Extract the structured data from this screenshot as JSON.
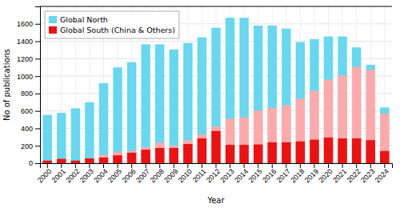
{
  "chart_data": {
    "type": "bar",
    "categories": [
      "2000",
      "2001",
      "2002",
      "2003",
      "2004",
      "2005",
      "2006",
      "2007",
      "2008",
      "2009",
      "2010",
      "2011",
      "2012",
      "2013",
      "2014",
      "2015",
      "2016",
      "2017",
      "2018",
      "2019",
      "2020",
      "2021",
      "2022",
      "2023",
      "2024"
    ],
    "series": [
      {
        "name": "Global North",
        "color": "#67d8ef",
        "values": [
          555,
          578,
          630,
          700,
          920,
          1100,
          1160,
          1365,
          1365,
          1305,
          1380,
          1445,
          1555,
          1670,
          1670,
          1580,
          1580,
          1545,
          1390,
          1425,
          1455,
          1455,
          1330,
          1130,
          640
        ]
      },
      {
        "color": "#ffaaaa",
        "values": [
          30,
          50,
          30,
          55,
          95,
          130,
          140,
          185,
          235,
          200,
          265,
          330,
          420,
          510,
          525,
          605,
          635,
          665,
          740,
          830,
          960,
          1005,
          1105,
          1070,
          570
        ]
      },
      {
        "name": "Global South (China & Others)",
        "color": "#ee1111",
        "values": [
          30,
          50,
          30,
          55,
          65,
          90,
          120,
          155,
          175,
          175,
          220,
          285,
          370,
          210,
          210,
          215,
          240,
          240,
          250,
          270,
          295,
          285,
          285,
          265,
          140
        ]
      }
    ],
    "xlabel": "Year",
    "ylabel": "No of publications",
    "ylim": [
      0,
      1800
    ],
    "yticks": [
      0,
      200,
      400,
      600,
      800,
      1000,
      1200,
      1400,
      1600
    ],
    "grid": true,
    "legend": "upper left",
    "stacked": false
  }
}
